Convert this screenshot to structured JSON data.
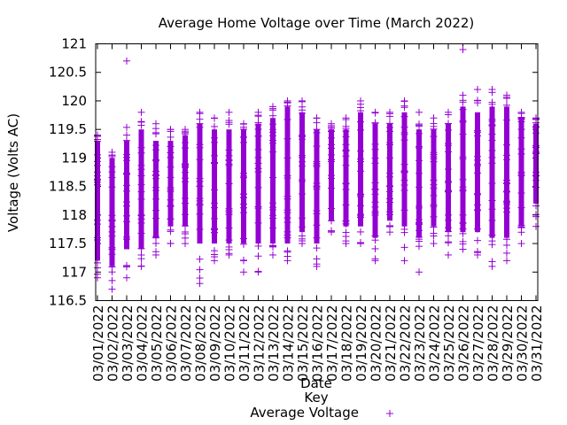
{
  "chart_data": {
    "type": "scatter",
    "title": "Average Home Voltage over Time (March 2022)",
    "xlabel": "Date",
    "ylabel": "Voltage (Volts AC)",
    "ylim": [
      116.5,
      121
    ],
    "yticks": [
      "116.5",
      "117",
      "117.5",
      "118",
      "118.5",
      "119",
      "119.5",
      "120",
      "120.5",
      "121"
    ],
    "marker_color": "#9400d3",
    "key_title": "Key",
    "legend": {
      "position": "bottom-center",
      "entries": [
        {
          "name": "Average Voltage",
          "marker": "+",
          "color": "#9400d3"
        }
      ]
    },
    "categories": [
      "03/01/2022",
      "03/02/2022",
      "03/03/2022",
      "03/04/2022",
      "03/05/2022",
      "03/06/2022",
      "03/07/2022",
      "03/08/2022",
      "03/09/2022",
      "03/10/2022",
      "03/11/2022",
      "03/12/2022",
      "03/13/2022",
      "03/14/2022",
      "03/15/2022",
      "03/16/2022",
      "03/17/2022",
      "03/18/2022",
      "03/19/2022",
      "03/20/2022",
      "03/21/2022",
      "03/22/2022",
      "03/23/2022",
      "03/24/2022",
      "03/25/2022",
      "03/26/2022",
      "03/27/2022",
      "03/28/2022",
      "03/29/2022",
      "03/30/2022",
      "03/31/2022"
    ],
    "daily_ranges": [
      {
        "date": "03/01/2022",
        "min": 116.9,
        "max": 119.4,
        "dense_low": 117.2,
        "dense_high": 119.3
      },
      {
        "date": "03/02/2022",
        "min": 116.7,
        "max": 119.1,
        "dense_low": 117.1,
        "dense_high": 119.0
      },
      {
        "date": "03/03/2022",
        "min": 116.9,
        "max": 120.7,
        "dense_low": 117.4,
        "dense_high": 119.3
      },
      {
        "date": "03/04/2022",
        "min": 117.1,
        "max": 119.8,
        "dense_low": 117.4,
        "dense_high": 119.5
      },
      {
        "date": "03/05/2022",
        "min": 117.3,
        "max": 119.6,
        "dense_low": 117.6,
        "dense_high": 119.3
      },
      {
        "date": "03/06/2022",
        "min": 117.5,
        "max": 119.5,
        "dense_low": 117.8,
        "dense_high": 119.3
      },
      {
        "date": "03/07/2022",
        "min": 117.5,
        "max": 119.5,
        "dense_low": 117.8,
        "dense_high": 119.4
      },
      {
        "date": "03/08/2022",
        "min": 116.8,
        "max": 119.8,
        "dense_low": 117.5,
        "dense_high": 119.6
      },
      {
        "date": "03/09/2022",
        "min": 117.2,
        "max": 119.7,
        "dense_low": 117.5,
        "dense_high": 119.5
      },
      {
        "date": "03/10/2022",
        "min": 117.3,
        "max": 119.8,
        "dense_low": 117.5,
        "dense_high": 119.5
      },
      {
        "date": "03/11/2022",
        "min": 117.0,
        "max": 119.6,
        "dense_low": 117.5,
        "dense_high": 119.5
      },
      {
        "date": "03/12/2022",
        "min": 117.0,
        "max": 119.8,
        "dense_low": 117.5,
        "dense_high": 119.6
      },
      {
        "date": "03/13/2022",
        "min": 117.3,
        "max": 119.9,
        "dense_low": 117.5,
        "dense_high": 119.7
      },
      {
        "date": "03/14/2022",
        "min": 117.2,
        "max": 120.0,
        "dense_low": 117.5,
        "dense_high": 119.9
      },
      {
        "date": "03/15/2022",
        "min": 117.5,
        "max": 120.0,
        "dense_low": 117.7,
        "dense_high": 119.8
      },
      {
        "date": "03/16/2022",
        "min": 117.1,
        "max": 119.7,
        "dense_low": 117.5,
        "dense_high": 119.5
      },
      {
        "date": "03/17/2022",
        "min": 117.7,
        "max": 119.6,
        "dense_low": 117.9,
        "dense_high": 119.5
      },
      {
        "date": "03/18/2022",
        "min": 117.5,
        "max": 119.7,
        "dense_low": 117.8,
        "dense_high": 119.5
      },
      {
        "date": "03/19/2022",
        "min": 117.5,
        "max": 120.0,
        "dense_low": 117.8,
        "dense_high": 119.8
      },
      {
        "date": "03/20/2022",
        "min": 117.2,
        "max": 119.8,
        "dense_low": 117.6,
        "dense_high": 119.6
      },
      {
        "date": "03/21/2022",
        "min": 117.7,
        "max": 119.8,
        "dense_low": 117.9,
        "dense_high": 119.6
      },
      {
        "date": "03/22/2022",
        "min": 117.2,
        "max": 120.0,
        "dense_low": 117.8,
        "dense_high": 119.8
      },
      {
        "date": "03/23/2022",
        "min": 117.0,
        "max": 119.8,
        "dense_low": 117.6,
        "dense_high": 119.5
      },
      {
        "date": "03/24/2022",
        "min": 117.5,
        "max": 119.7,
        "dense_low": 117.8,
        "dense_high": 119.5
      },
      {
        "date": "03/25/2022",
        "min": 117.3,
        "max": 119.8,
        "dense_low": 117.7,
        "dense_high": 119.6
      },
      {
        "date": "03/26/2022",
        "min": 117.4,
        "max": 120.9,
        "dense_low": 117.7,
        "dense_high": 119.9
      },
      {
        "date": "03/27/2022",
        "min": 117.3,
        "max": 120.2,
        "dense_low": 117.7,
        "dense_high": 119.8
      },
      {
        "date": "03/28/2022",
        "min": 117.1,
        "max": 120.2,
        "dense_low": 117.6,
        "dense_high": 119.9
      },
      {
        "date": "03/29/2022",
        "min": 117.2,
        "max": 120.1,
        "dense_low": 117.6,
        "dense_high": 119.9
      },
      {
        "date": "03/30/2022",
        "min": 117.5,
        "max": 119.8,
        "dense_low": 117.8,
        "dense_high": 119.7
      },
      {
        "date": "03/31/2022",
        "min": 117.8,
        "max": 119.7,
        "dense_low": 118.2,
        "dense_high": 119.6
      }
    ]
  }
}
